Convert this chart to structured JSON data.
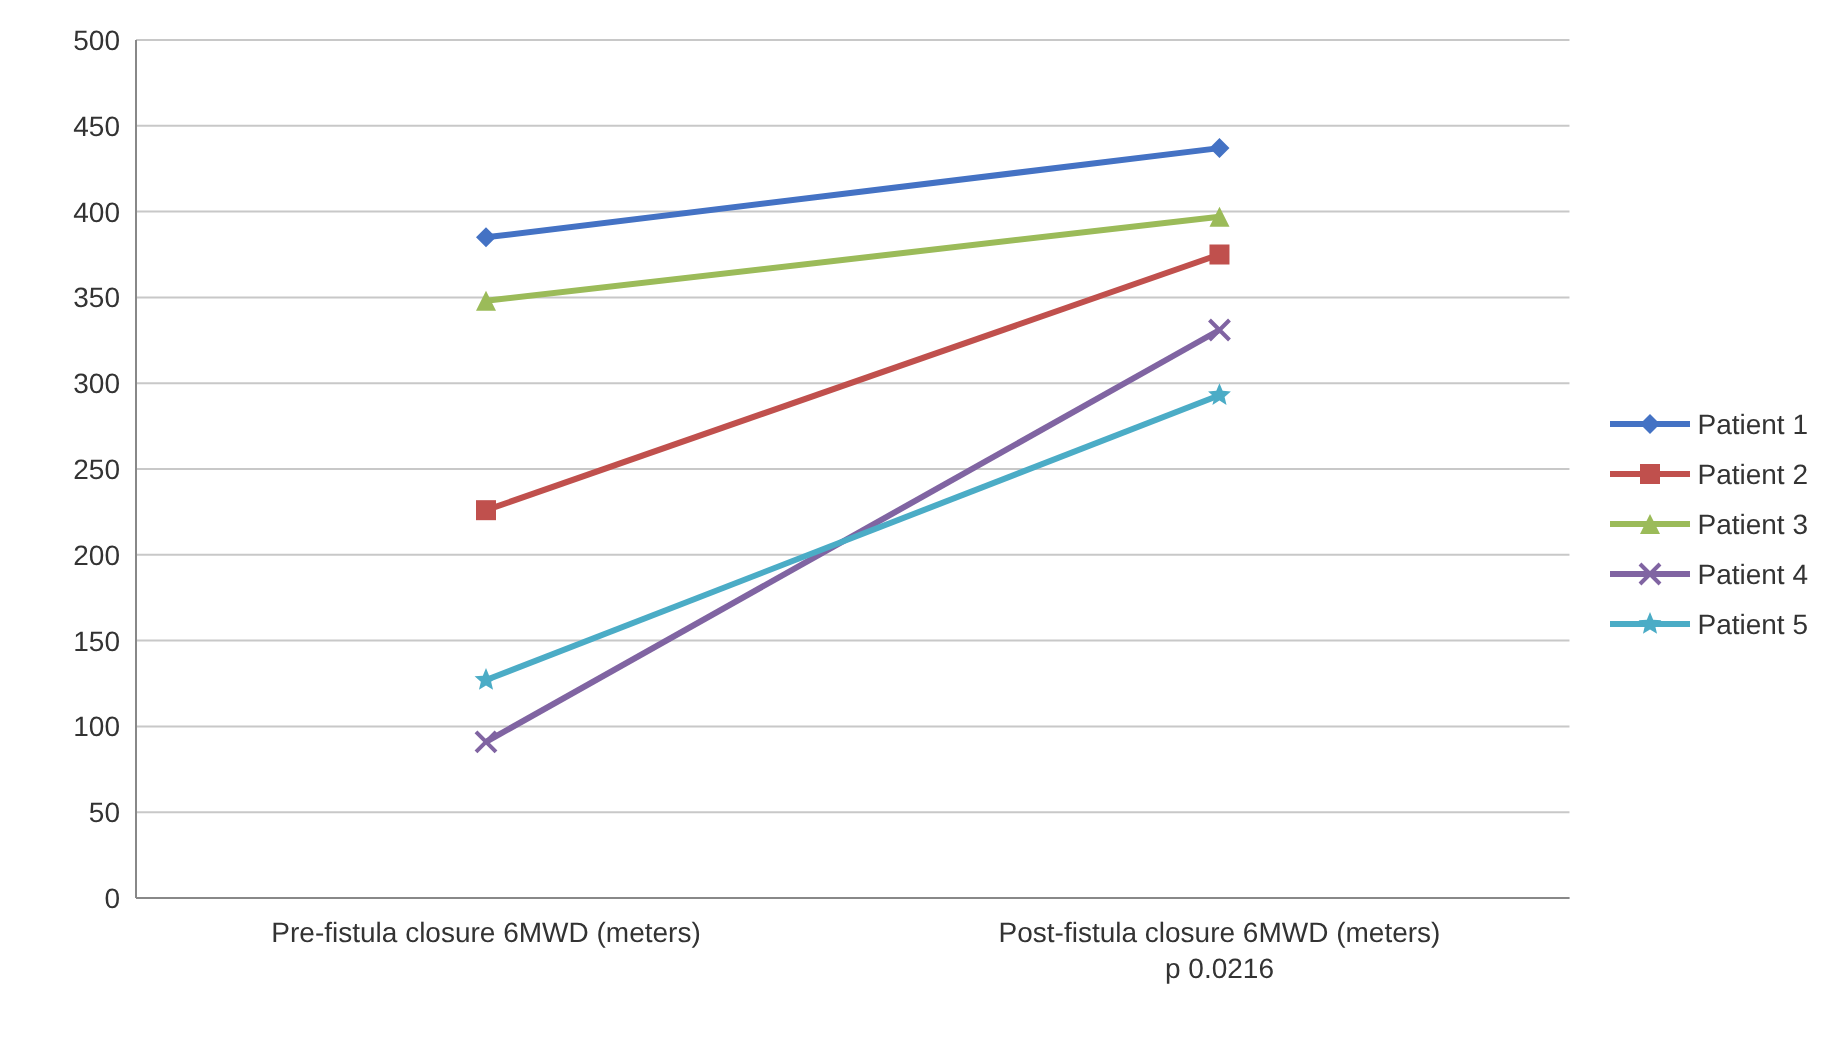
{
  "chart_data": {
    "type": "line",
    "categories": [
      "Pre-fistula closure  6MWD (meters)",
      "Post-fistula closure  6MWD (meters)"
    ],
    "series": [
      {
        "name": "Patient 1",
        "color": "#4472c4",
        "values": [
          385,
          437
        ],
        "marker": "diamond"
      },
      {
        "name": "Patient 2",
        "color": "#c0504d",
        "values": [
          226,
          375
        ],
        "marker": "square"
      },
      {
        "name": "Patient 3",
        "color": "#9bbb59",
        "values": [
          348,
          397
        ],
        "marker": "triangle"
      },
      {
        "name": "Patient 4",
        "color": "#8064a2",
        "values": [
          91,
          331
        ],
        "marker": "cross"
      },
      {
        "name": "Patient 5",
        "color": "#4bacc6",
        "values": [
          127,
          293
        ],
        "marker": "star"
      }
    ],
    "ylim": [
      0,
      500
    ],
    "yticks": [
      0,
      50,
      100,
      150,
      200,
      250,
      300,
      350,
      400,
      450,
      500
    ],
    "grid": "y",
    "legend": "right",
    "annotations": [
      "p 0.0216"
    ]
  }
}
